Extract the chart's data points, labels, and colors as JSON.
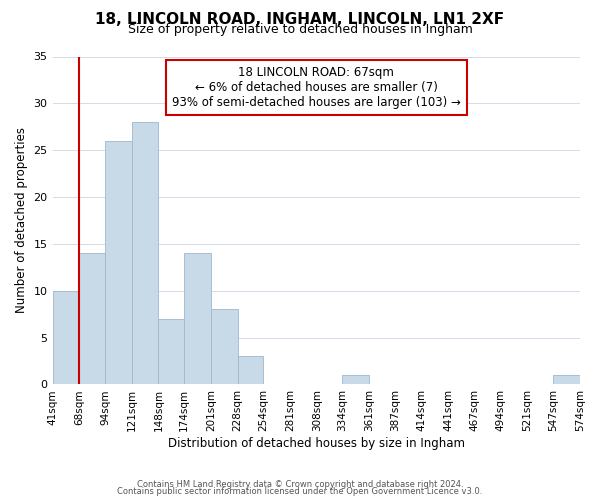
{
  "title": "18, LINCOLN ROAD, INGHAM, LINCOLN, LN1 2XF",
  "subtitle": "Size of property relative to detached houses in Ingham",
  "xlabel": "Distribution of detached houses by size in Ingham",
  "ylabel": "Number of detached properties",
  "bin_labels": [
    "41sqm",
    "68sqm",
    "94sqm",
    "121sqm",
    "148sqm",
    "174sqm",
    "201sqm",
    "228sqm",
    "254sqm",
    "281sqm",
    "308sqm",
    "334sqm",
    "361sqm",
    "387sqm",
    "414sqm",
    "441sqm",
    "467sqm",
    "494sqm",
    "521sqm",
    "547sqm",
    "574sqm"
  ],
  "bar_heights": [
    10,
    14,
    26,
    28,
    7,
    14,
    8,
    3,
    0,
    0,
    0,
    1,
    0,
    0,
    0,
    0,
    0,
    0,
    0,
    1,
    0
  ],
  "bar_color": "#c8d9e8",
  "bar_edge_color": "#a0b8cc",
  "vline_color": "#cc0000",
  "ylim": [
    0,
    35
  ],
  "annotation_text": "18 LINCOLN ROAD: 67sqm\n← 6% of detached houses are smaller (7)\n93% of semi-detached houses are larger (103) →",
  "annotation_box_color": "#ffffff",
  "annotation_box_edge_color": "#cc0000",
  "footer_line1": "Contains HM Land Registry data © Crown copyright and database right 2024.",
  "footer_line2": "Contains public sector information licensed under the Open Government Licence v3.0.",
  "title_fontsize": 11,
  "subtitle_fontsize": 9,
  "yticks": [
    0,
    5,
    10,
    15,
    20,
    25,
    30,
    35
  ],
  "bin_edges": [
    41,
    68,
    94,
    121,
    148,
    174,
    201,
    228,
    254,
    281,
    308,
    334,
    361,
    387,
    414,
    441,
    467,
    494,
    521,
    547,
    574
  ]
}
